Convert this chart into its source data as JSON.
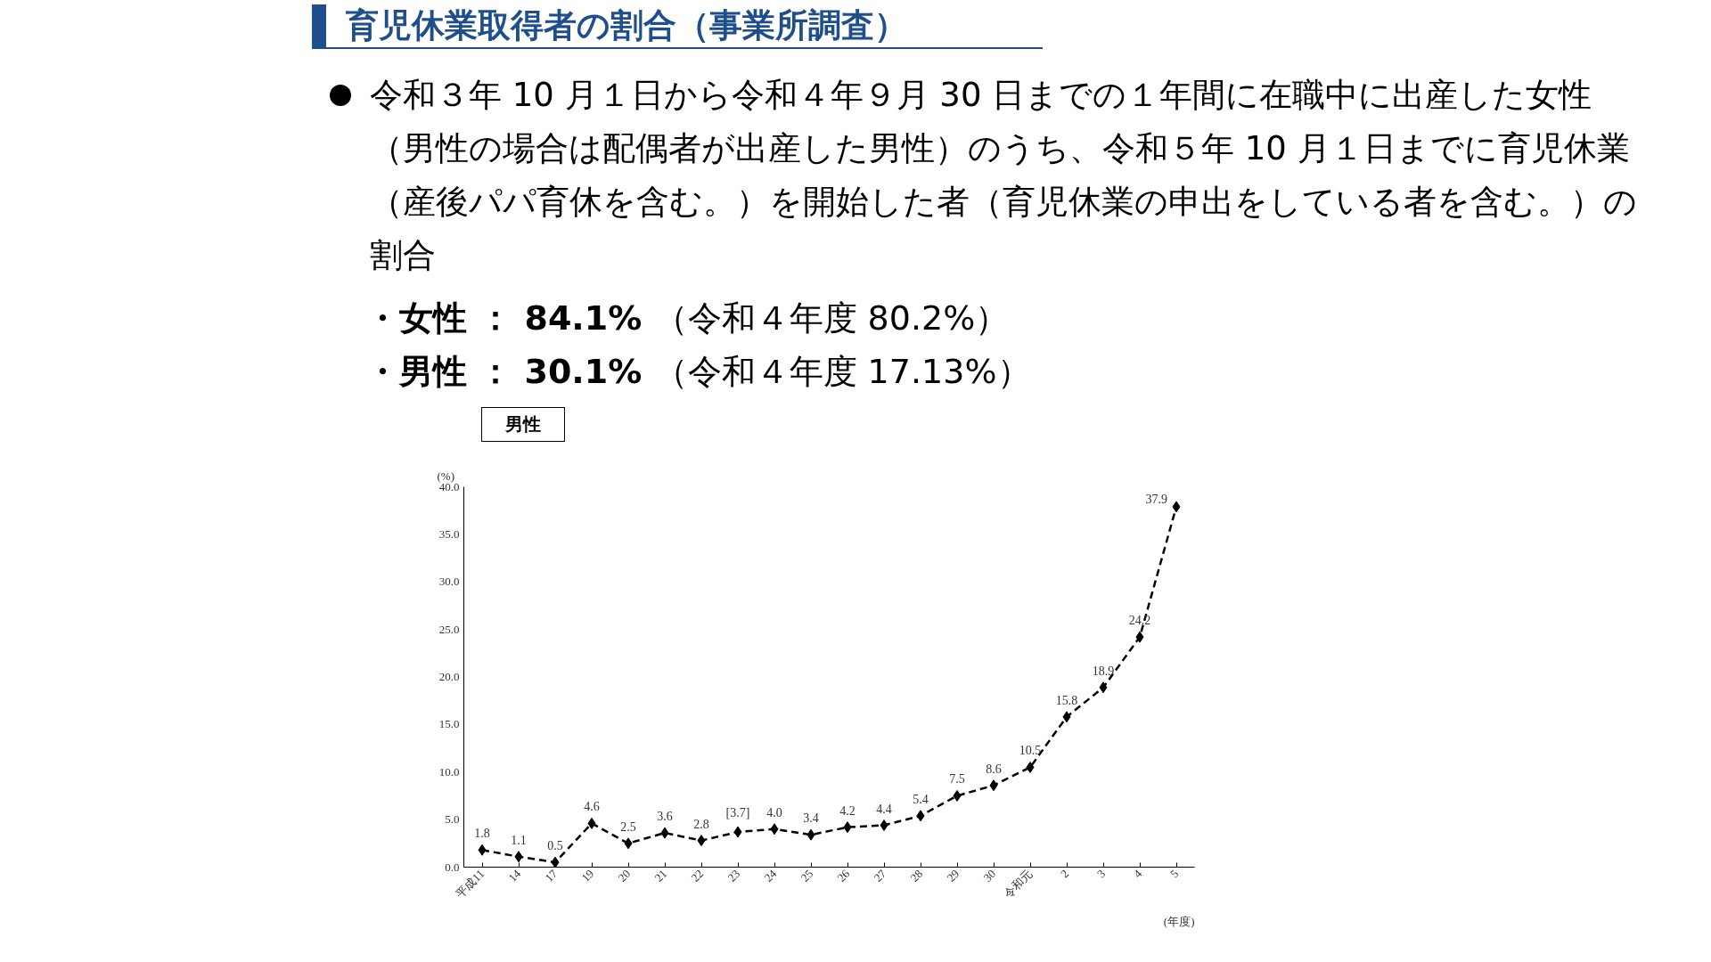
{
  "chart_data": {
    "type": "line",
    "title": "育児休業取得者の割合（事業所調査）",
    "subtitle": "令和３年 10 月１日から令和４年９月 30 日までの１年間に在職中に出産した女性（男性の場合は配偶者が出産した男性）のうち、令和５年 10 月１日までに育児休業（産後パパ育休を含む。）を開始した者（育児休業の申出をしている者を含む。）の割合",
    "annotations": [
      "・女性 ： 84.1% （令和４年度 80.2%）",
      "・男性 ： 30.1% （令和４年度 17.13%）",
      "男性"
    ],
    "xlabel": "(年度)",
    "ylabel": "(%)",
    "categories": [
      "平成11",
      "14",
      "17",
      "19",
      "20",
      "21",
      "22",
      "23",
      "24",
      "25",
      "26",
      "27",
      "28",
      "29",
      "30",
      "令和元",
      "2",
      "3",
      "4",
      "5"
    ],
    "series": [
      {
        "color": "#000000",
        "values": [
          1.8,
          1.1,
          0.5,
          4.6,
          2.5,
          3.6,
          2.8,
          3.7,
          4.0,
          3.4,
          4.2,
          4.4,
          5.4,
          7.5,
          8.6,
          10.5,
          15.8,
          18.9,
          24.2,
          37.9
        ],
        "value_labels": [
          "1.8",
          "1.1",
          "0.5",
          "4.6",
          "2.5",
          "3.6",
          "2.8",
          "[3.7]",
          "4.0",
          "3.4",
          "4.2",
          "4.4",
          "5.4",
          "7.5",
          "8.6",
          "10.5",
          "15.8",
          "18.9",
          "24.2",
          "37.9"
        ]
      }
    ],
    "ylim": [
      0,
      40
    ],
    "yticks": [
      {
        "value": 0,
        "label": "0.0"
      },
      {
        "value": 5,
        "label": "5.0"
      },
      {
        "value": 10,
        "label": "10.0"
      },
      {
        "value": 15,
        "label": "15.0"
      },
      {
        "value": 20,
        "label": "20.0"
      },
      {
        "value": 25,
        "label": "25.0"
      },
      {
        "value": 30,
        "label": "30.0"
      },
      {
        "value": 35,
        "label": "35.0"
      },
      {
        "value": 40,
        "label": "40.0"
      }
    ],
    "marker": "diamond",
    "line_style": "dashed",
    "grid": false
  }
}
